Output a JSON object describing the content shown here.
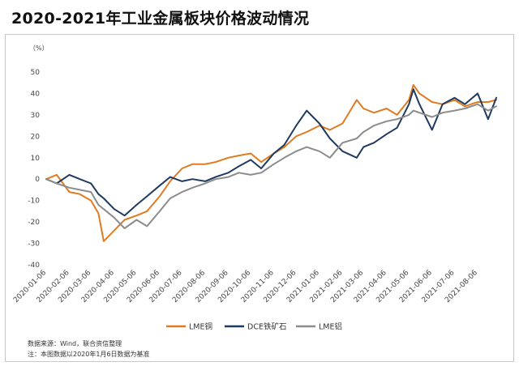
{
  "title": "2020-2021年工业金属板块价格波动情况",
  "unit_label": "（%）",
  "notes": [
    "数据来源：Wind，联合资信整理",
    "注：本图数据以2020年1月6日数据为基准"
  ],
  "chart_data": {
    "type": "line",
    "title": "2020-2021年工业金属板块价格波动情况",
    "xlabel": "",
    "ylabel": "（%）",
    "ylim": [
      -40,
      50
    ],
    "yticks": [
      -40,
      -30,
      -20,
      -10,
      0,
      10,
      20,
      30,
      40,
      50
    ],
    "grid": false,
    "legend": "bottom",
    "x_tick_labels": [
      "2020-01-06",
      "2020-02-06",
      "2020-03-06",
      "2020-04-06",
      "2020-05-06",
      "2020-06-06",
      "2020-07-06",
      "2020-08-06",
      "2020-09-06",
      "2020-10-06",
      "2020-11-06",
      "2020-12-06",
      "2021-01-06",
      "2021-02-06",
      "2021-03-06",
      "2021-04-06",
      "2021-05-06",
      "2021-06-06",
      "2021-07-06",
      "2021-08-06"
    ],
    "x": [
      "2020-01-06",
      "2020-01-20",
      "2020-02-06",
      "2020-02-20",
      "2020-03-06",
      "2020-03-16",
      "2020-03-23",
      "2020-04-06",
      "2020-04-20",
      "2020-05-06",
      "2020-05-20",
      "2020-06-06",
      "2020-06-20",
      "2020-07-06",
      "2020-07-20",
      "2020-08-06",
      "2020-08-20",
      "2020-09-06",
      "2020-09-20",
      "2020-10-06",
      "2020-10-20",
      "2020-11-06",
      "2020-11-20",
      "2020-12-06",
      "2020-12-20",
      "2021-01-06",
      "2021-01-20",
      "2021-02-06",
      "2021-02-25",
      "2021-03-06",
      "2021-03-20",
      "2021-04-06",
      "2021-04-20",
      "2021-05-06",
      "2021-05-12",
      "2021-05-20",
      "2021-06-06",
      "2021-06-20",
      "2021-07-06",
      "2021-07-20",
      "2021-08-06",
      "2021-08-20",
      "2021-08-31"
    ],
    "series": [
      {
        "name": "LME铜",
        "color": "#E07B20",
        "values": [
          0,
          2,
          -6,
          -7,
          -10,
          -16,
          -29,
          -24,
          -19,
          -17,
          -15,
          -8,
          -1,
          5,
          7,
          7,
          8,
          10,
          11,
          12,
          8,
          12,
          15,
          20,
          22,
          25,
          23,
          26,
          37,
          33,
          31,
          33,
          30,
          37,
          44,
          40,
          36,
          35,
          37,
          34,
          36,
          36,
          37
        ]
      },
      {
        "name": "DCE铁矿石",
        "color": "#1F3A5F",
        "values": [
          0,
          -2,
          2,
          0,
          -2,
          -7,
          -9,
          -14,
          -17,
          -12,
          -8,
          -3,
          1,
          -1,
          0,
          -1,
          1,
          3,
          6,
          9,
          5,
          12,
          16,
          25,
          32,
          26,
          19,
          13,
          10,
          15,
          17,
          21,
          24,
          35,
          42,
          35,
          23,
          35,
          38,
          35,
          40,
          28,
          38
        ]
      },
      {
        "name": "LME铝",
        "color": "#8C8C8C",
        "values": [
          0,
          -2,
          -4,
          -5,
          -6,
          -12,
          -14,
          -18,
          -23,
          -19,
          -22,
          -15,
          -9,
          -6,
          -4,
          -2,
          0,
          1,
          3,
          2,
          3,
          7,
          10,
          13,
          15,
          13,
          10,
          17,
          19,
          22,
          25,
          27,
          28,
          30,
          32,
          31,
          29,
          31,
          32,
          33,
          35,
          32,
          34
        ]
      }
    ]
  }
}
